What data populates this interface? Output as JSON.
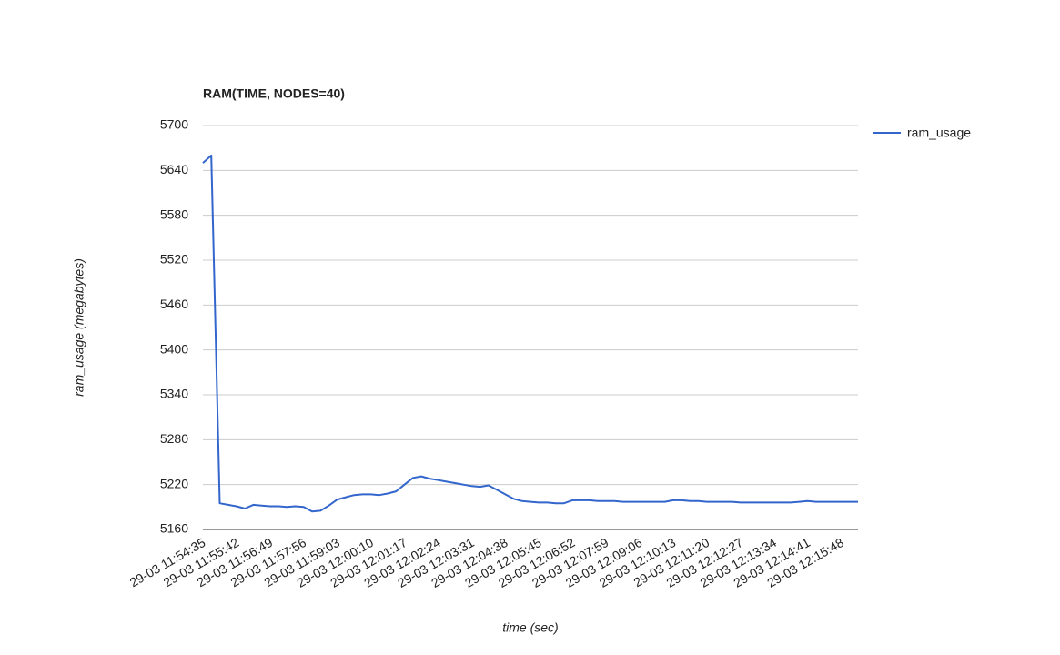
{
  "chart_data": {
    "type": "line",
    "title": "RAM(TIME, NODES=40)",
    "x_label": "time (sec)",
    "y_label": "ram_usage (megabytes)",
    "categories": [
      "29-03 11:54:35",
      null,
      null,
      null,
      "29-03 11:55:42",
      null,
      null,
      null,
      "29-03 11:56:49",
      null,
      null,
      null,
      "29-03 11:57:56",
      null,
      null,
      null,
      "29-03 11:59:03",
      null,
      null,
      null,
      "29-03 12:00:10",
      null,
      null,
      null,
      "29-03 12:01:17",
      null,
      null,
      null,
      "29-03 12:02:24",
      null,
      null,
      null,
      "29-03 12:03:31",
      null,
      null,
      null,
      "29-03 12:04:38",
      null,
      null,
      null,
      "29-03 12:05:45",
      null,
      null,
      null,
      "29-03 12:06:52",
      null,
      null,
      null,
      "29-03 12:07:59",
      null,
      null,
      null,
      "29-03 12:09:06",
      null,
      null,
      null,
      "29-03 12:10:13",
      null,
      null,
      null,
      "29-03 12:11:20",
      null,
      null,
      null,
      "29-03 12:12:27",
      null,
      null,
      null,
      "29-03 12:13:34",
      null,
      null,
      null,
      "29-03 12:14:41",
      null,
      null,
      null,
      "29-03 12:15:48",
      null,
      null
    ],
    "series": [
      {
        "name": "ram_usage",
        "color": "#3366cc",
        "values": [
          5650,
          5660,
          5195,
          5193,
          5191,
          5188,
          5193,
          5192,
          5191,
          5191,
          5190,
          5191,
          5190,
          5184,
          5185,
          5192,
          5200,
          5203,
          5206,
          5207,
          5207,
          5206,
          5208,
          5211,
          5220,
          5229,
          5231,
          5228,
          5226,
          5224,
          5222,
          5220,
          5218,
          5217,
          5219,
          5213,
          5207,
          5201,
          5198,
          5197,
          5196,
          5196,
          5195,
          5195,
          5199,
          5199,
          5199,
          5198,
          5198,
          5198,
          5197,
          5197,
          5197,
          5197,
          5197,
          5197,
          5199,
          5199,
          5198,
          5198,
          5197,
          5197,
          5197,
          5197,
          5196,
          5196,
          5196,
          5196,
          5196,
          5196,
          5196,
          5197,
          5198,
          5197,
          5197,
          5197,
          5197,
          5197,
          5197
        ]
      }
    ],
    "ylim": [
      5160,
      5700
    ],
    "yticks": [
      5160,
      5220,
      5280,
      5340,
      5400,
      5460,
      5520,
      5580,
      5640,
      5700
    ],
    "grid": true,
    "legend": "right"
  }
}
